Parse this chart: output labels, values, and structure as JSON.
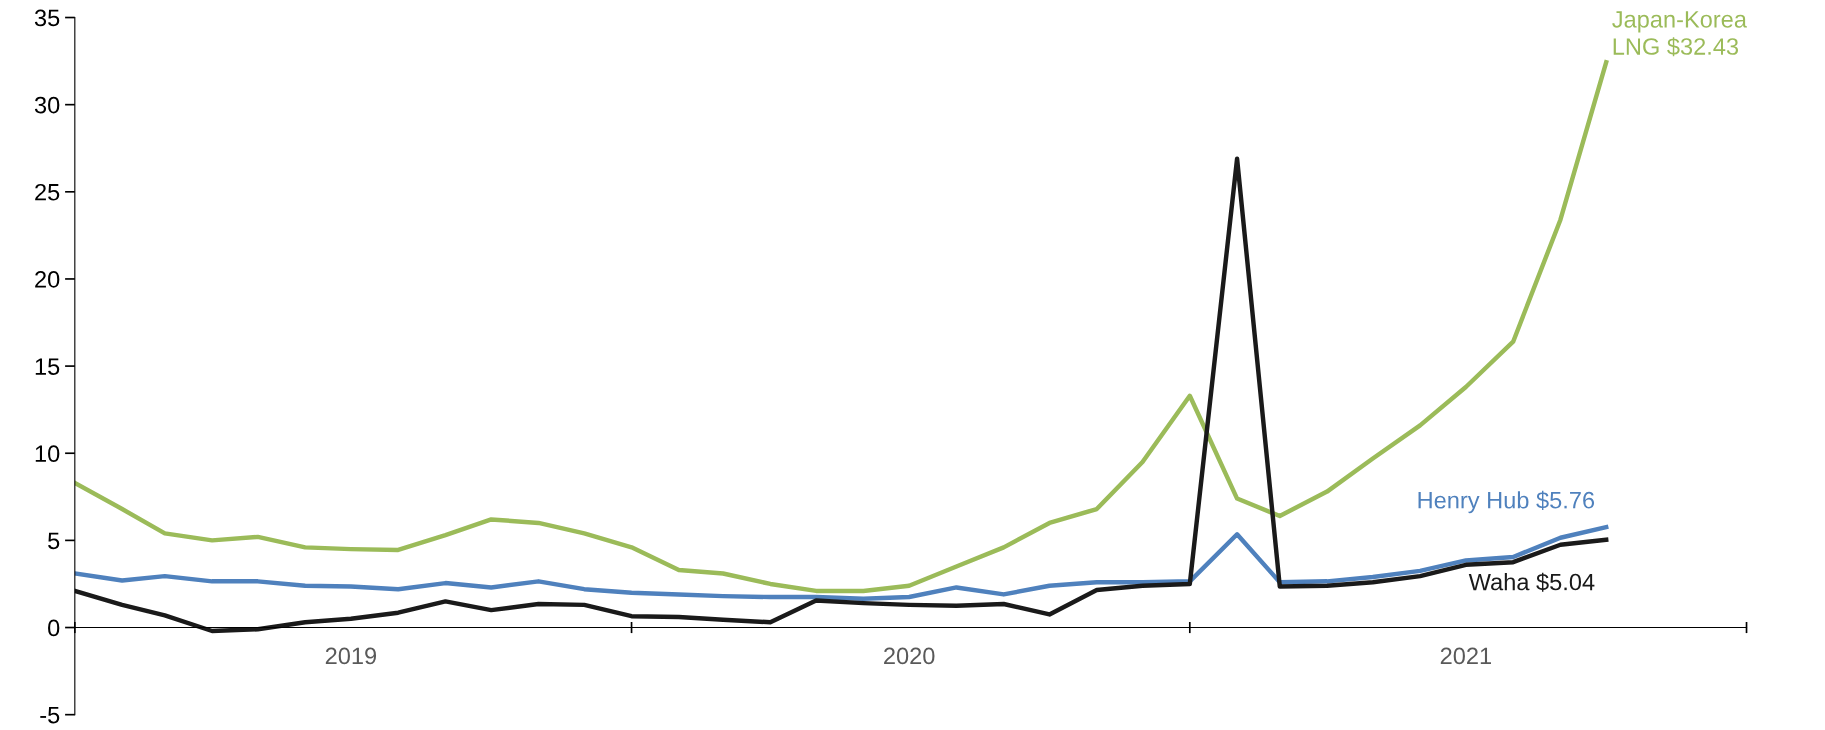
{
  "chart_data": {
    "type": "line",
    "x": [
      "2019-01",
      "2019-02",
      "2019-03",
      "2019-04",
      "2019-05",
      "2019-06",
      "2019-07",
      "2019-08",
      "2019-09",
      "2019-10",
      "2019-11",
      "2019-12",
      "2020-01",
      "2020-02",
      "2020-03",
      "2020-04",
      "2020-05",
      "2020-06",
      "2020-07",
      "2020-08",
      "2020-09",
      "2020-10",
      "2020-11",
      "2020-12",
      "2021-01",
      "2021-02",
      "2021-03",
      "2021-04",
      "2021-05",
      "2021-06",
      "2021-07",
      "2021-08",
      "2021-09",
      "2021-10"
    ],
    "series": [
      {
        "name": "Japan-Korea\nLNG $32.43",
        "color": "#9bbb59",
        "values": [
          8.3,
          6.8,
          5.4,
          5.0,
          5.2,
          4.6,
          4.5,
          4.45,
          5.3,
          6.2,
          6.0,
          5.4,
          4.6,
          3.3,
          3.1,
          2.5,
          2.1,
          2.1,
          2.4,
          3.5,
          4.6,
          6.0,
          6.8,
          9.5,
          13.3,
          7.4,
          6.4,
          7.8,
          9.7,
          11.6,
          13.8,
          16.4,
          23.4,
          32.43
        ]
      },
      {
        "name": "Henry Hub $5.76",
        "color": "#4f81bd",
        "values": [
          3.1,
          2.7,
          2.95,
          2.65,
          2.65,
          2.4,
          2.35,
          2.2,
          2.55,
          2.3,
          2.65,
          2.2,
          2.0,
          1.9,
          1.8,
          1.75,
          1.75,
          1.65,
          1.75,
          2.3,
          1.9,
          2.4,
          2.6,
          2.6,
          2.65,
          5.35,
          2.6,
          2.65,
          2.9,
          3.25,
          3.85,
          4.05,
          5.15,
          5.76
        ]
      },
      {
        "name": "Waha $5.04",
        "color": "#1a1a1a",
        "values": [
          2.1,
          1.3,
          0.7,
          -0.2,
          -0.1,
          0.3,
          0.5,
          0.85,
          1.5,
          1.0,
          1.35,
          1.3,
          0.65,
          0.6,
          0.45,
          0.3,
          1.55,
          1.4,
          1.3,
          1.25,
          1.35,
          0.75,
          2.15,
          2.4,
          2.5,
          26.9,
          2.35,
          2.4,
          2.6,
          2.95,
          3.6,
          3.75,
          4.75,
          5.04
        ]
      }
    ],
    "xlim": [
      "2019-01",
      "2022-01"
    ],
    "xticks": [
      {
        "value": "2019-01",
        "label": null
      },
      {
        "value": "2019-07",
        "label": "2019"
      },
      {
        "value": "2020-01",
        "label": null
      },
      {
        "value": "2020-07",
        "label": "2020"
      },
      {
        "value": "2021-01",
        "label": null
      },
      {
        "value": "2021-07",
        "label": "2021"
      },
      {
        "value": "2022-01",
        "label": null
      }
    ],
    "ylim": [
      -5,
      35
    ],
    "yticks": [
      -5,
      0,
      5,
      10,
      15,
      20,
      25,
      30,
      35
    ],
    "grid": false,
    "legend": false,
    "marker": "none",
    "line_style": "solid"
  }
}
